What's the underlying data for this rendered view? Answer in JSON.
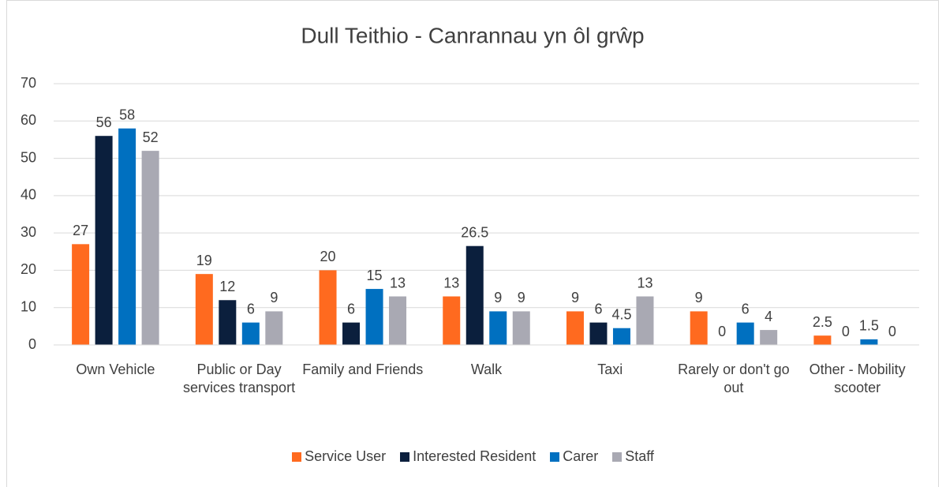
{
  "chart_data": {
    "type": "bar",
    "title": "Dull Teithio - Canrannau yn ôl grŵp",
    "categories": [
      "Own Vehicle",
      "Public or Day services transport",
      "Family and Friends",
      "Walk",
      "Taxi",
      "Rarely or don't go out",
      "Other - Mobility scooter"
    ],
    "series": [
      {
        "name": "Service User",
        "color": "#ff6a1f",
        "values": [
          27,
          19,
          20,
          13,
          9,
          9,
          2.5
        ]
      },
      {
        "name": "Interested Resident",
        "color": "#0b1f3d",
        "values": [
          56,
          12,
          6,
          26.5,
          6,
          0,
          0
        ]
      },
      {
        "name": "Carer",
        "color": "#0070c0",
        "values": [
          58,
          6,
          15,
          9,
          4.5,
          6,
          1.5
        ]
      },
      {
        "name": "Staff",
        "color": "#a9a9b3",
        "values": [
          52,
          9,
          13,
          9,
          13,
          4,
          0
        ]
      }
    ],
    "ylim": [
      0,
      70
    ],
    "yticks": [
      0,
      10,
      20,
      30,
      40,
      50,
      60,
      70
    ],
    "grid": true,
    "legend": "bottom"
  }
}
